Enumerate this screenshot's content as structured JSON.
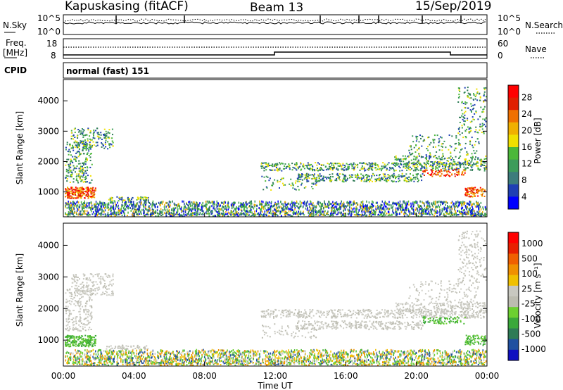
{
  "header": {
    "station": "Kapuskasing (fitACF)",
    "beam": "Beam 13",
    "date": "15/Sep/2019"
  },
  "panels": {
    "nsky_label": "N.Sky",
    "nsky_ticks": [
      "10^5",
      "10^0"
    ],
    "nsearch_label": "N.Search",
    "freq_label_1": "Freq.",
    "freq_label_2": "[MHz]",
    "freq_ticks": [
      "18",
      "8"
    ],
    "nave_label": "Nave",
    "nave_ticks": [
      "60",
      "0"
    ],
    "cpid_label": "CPID",
    "cpid_text": "normal (fast) 151"
  },
  "chart_data": [
    {
      "type": "heatmap",
      "name": "power",
      "ylabel": "Slant Range [km]",
      "xlabel": "Time UT",
      "y_ticks": [
        "4000",
        "3000",
        "2000",
        "1000"
      ],
      "x_ticks": [
        "00:00",
        "04:00",
        "08:00",
        "12:00",
        "16:00",
        "20:00",
        "00:00"
      ],
      "colorbar_label": "Power [dB]",
      "colorbar_ticks": [
        "28",
        "24",
        "20",
        "16",
        "12",
        "8",
        "4"
      ],
      "colors": [
        "#0000ff",
        "#1f3fb4",
        "#3c7c7c",
        "#3c9c5a",
        "#4cb83a",
        "#f0e000",
        "#f0b000",
        "#f07000",
        "#e02000",
        "#ff0000"
      ]
    },
    {
      "type": "heatmap",
      "name": "velocity",
      "ylabel": "Slant Range [km]",
      "xlabel": "Time UT",
      "y_ticks": [
        "4000",
        "3000",
        "2000",
        "1000"
      ],
      "x_ticks": [
        "00:00",
        "04:00",
        "08:00",
        "12:00",
        "16:00",
        "20:00",
        "00:00"
      ],
      "colorbar_label": "Velocity [m s⁻¹]",
      "colorbar_ticks": [
        "1000",
        "500",
        "100",
        "25",
        "-25",
        "-100",
        "-500",
        "-1000"
      ],
      "colors": [
        "#1010c0",
        "#2050a0",
        "#2e7b56",
        "#3aa83a",
        "#6cd030",
        "#bcbcb0",
        "#c8c8c0",
        "#f0c000",
        "#f09000",
        "#f06000",
        "#e82000",
        "#ff0000"
      ]
    }
  ],
  "xlabel": "Time UT"
}
